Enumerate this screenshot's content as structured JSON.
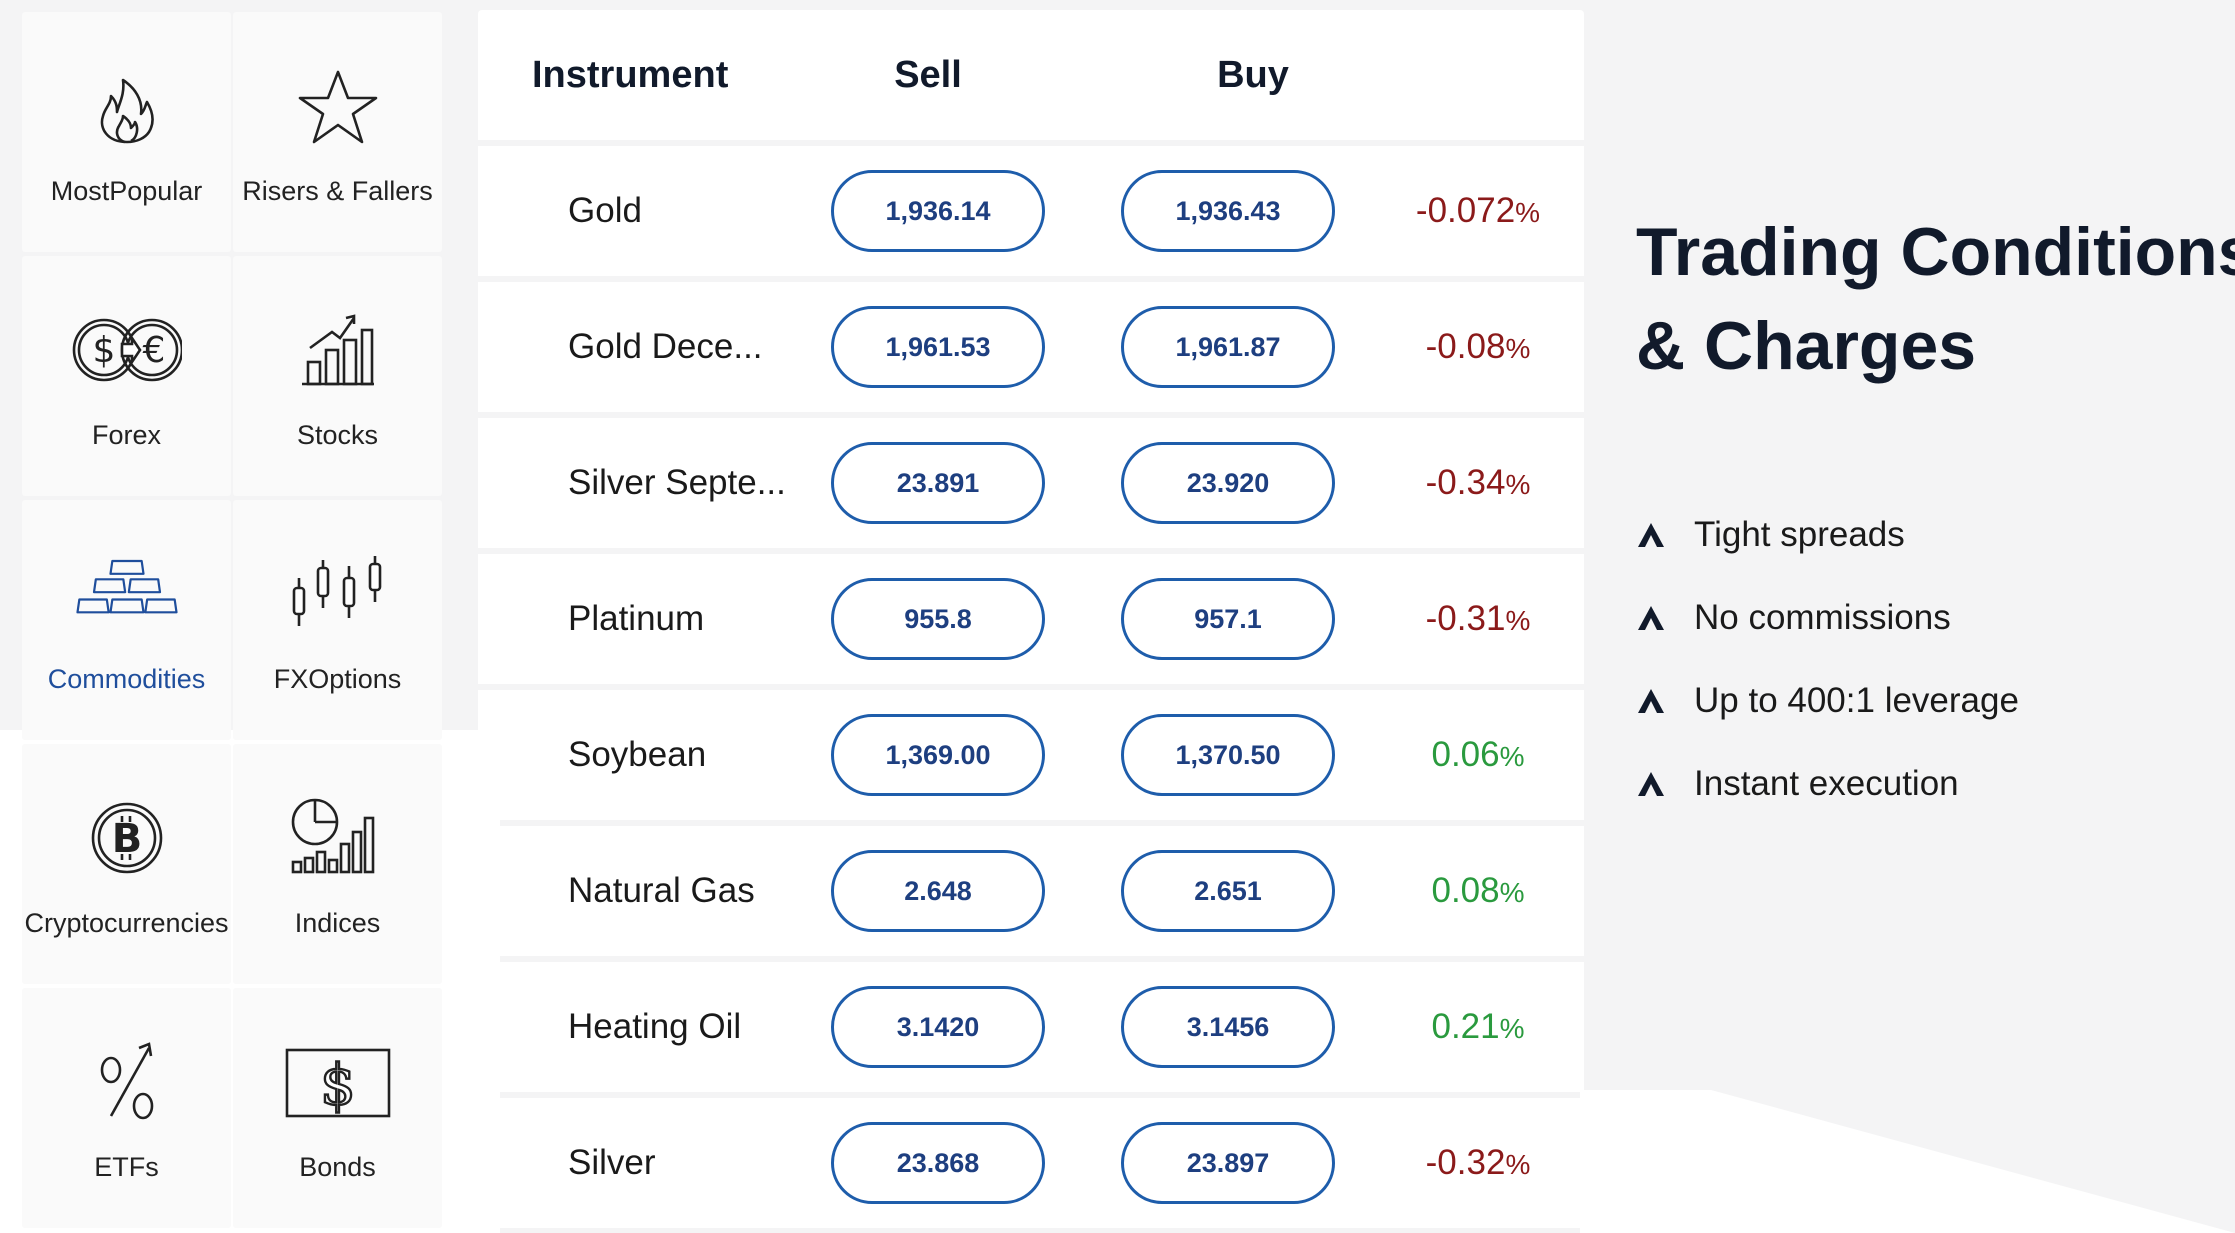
{
  "categories": [
    {
      "label": "MostPopular",
      "icon": "fire-icon",
      "active": false
    },
    {
      "label": "Risers & Fallers",
      "icon": "star-icon",
      "active": false
    },
    {
      "label": "Forex",
      "icon": "dollar-euro-exchange-icon",
      "active": false
    },
    {
      "label": "Stocks",
      "icon": "bar-chart-arrow-icon",
      "active": false
    },
    {
      "label": "Commodities",
      "icon": "gold-bars-icon",
      "active": true
    },
    {
      "label": "FXOptions",
      "icon": "candlestick-icon",
      "active": false
    },
    {
      "label": "Cryptocurrencies",
      "icon": "bitcoin-icon",
      "active": false
    },
    {
      "label": "Indices",
      "icon": "pie-bars-icon",
      "active": false
    },
    {
      "label": "ETFs",
      "icon": "percent-arrow-icon",
      "active": false
    },
    {
      "label": "Bonds",
      "icon": "dollar-bill-icon",
      "active": false
    }
  ],
  "table": {
    "headers": {
      "instrument": "Instrument",
      "sell": "Sell",
      "buy": "Buy"
    },
    "rows": [
      {
        "name": "Gold",
        "sell": "1,936.14",
        "buy": "1,936.43",
        "change": "-0.072",
        "direction": "down"
      },
      {
        "name": "Gold Dece...",
        "sell": "1,961.53",
        "buy": "1,961.87",
        "change": "-0.08",
        "direction": "down"
      },
      {
        "name": "Silver Septe...",
        "sell": "23.891",
        "buy": "23.920",
        "change": "-0.34",
        "direction": "down"
      },
      {
        "name": "Platinum",
        "sell": "955.8",
        "buy": "957.1",
        "change": "-0.31",
        "direction": "down"
      },
      {
        "name": "Soybean",
        "sell": "1,369.00",
        "buy": "1,370.50",
        "change": "0.06",
        "direction": "up"
      },
      {
        "name": "Natural Gas",
        "sell": "2.648",
        "buy": "2.651",
        "change": "0.08",
        "direction": "up"
      },
      {
        "name": "Heating Oil",
        "sell": "3.1420",
        "buy": "3.1456",
        "change": "0.21",
        "direction": "up"
      },
      {
        "name": "Silver",
        "sell": "23.868",
        "buy": "23.897",
        "change": "-0.32",
        "direction": "down"
      }
    ],
    "percent_sign": "%"
  },
  "info": {
    "title_line1": "Trading Conditions",
    "title_line2": "& Charges",
    "items": [
      "Tight spreads",
      "No commissions",
      "Up to 400:1 leverage",
      "Instant execution"
    ]
  },
  "colors": {
    "accent": "#1e5dab",
    "negative": "#8b1a1a",
    "positive": "#2a9a3e",
    "active_category": "#1f4e9c"
  }
}
